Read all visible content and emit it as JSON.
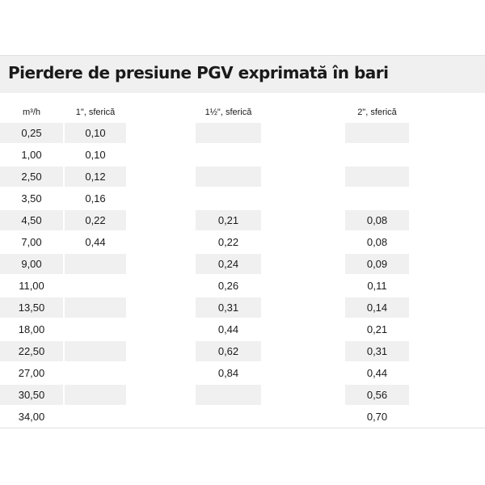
{
  "title": "Pierdere de presiune PGV exprimată în bari",
  "columns": [
    "m³/h",
    "1\", sferică",
    "1½\", sferică",
    "2\", sferică"
  ],
  "rows": [
    [
      "0,25",
      "0,10",
      "",
      ""
    ],
    [
      "1,00",
      "0,10",
      "",
      ""
    ],
    [
      "2,50",
      "0,12",
      "",
      ""
    ],
    [
      "3,50",
      "0,16",
      "",
      ""
    ],
    [
      "4,50",
      "0,22",
      "0,21",
      "0,08"
    ],
    [
      "7,00",
      "0,44",
      "0,22",
      "0,08"
    ],
    [
      "9,00",
      "",
      "0,24",
      "0,09"
    ],
    [
      "11,00",
      "",
      "0,26",
      "0,11"
    ],
    [
      "13,50",
      "",
      "0,31",
      "0,14"
    ],
    [
      "18,00",
      "",
      "0,44",
      "0,21"
    ],
    [
      "22,50",
      "",
      "0,62",
      "0,31"
    ],
    [
      "27,00",
      "",
      "0,84",
      "0,44"
    ],
    [
      "30,50",
      "",
      "",
      "0,56"
    ],
    [
      "34,00",
      "",
      "",
      "0,70"
    ]
  ],
  "colors": {
    "shade": "#f0f0f0",
    "text": "#1a1a1a"
  }
}
